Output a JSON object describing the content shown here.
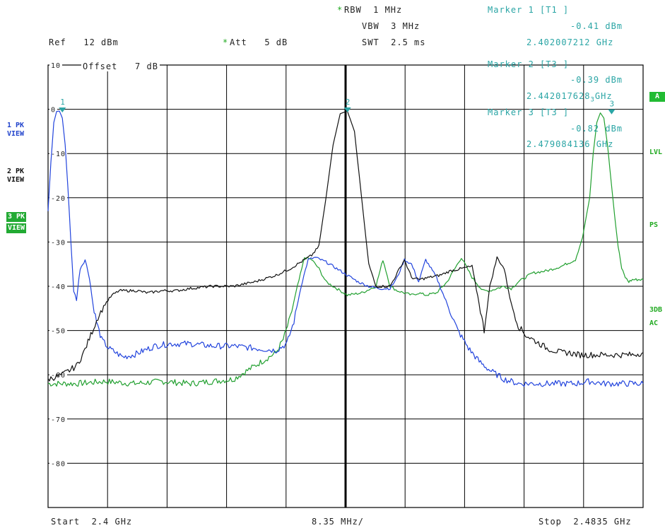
{
  "header": {
    "rbw": "RBW  1 MHz",
    "vbw": "VBW  3 MHz",
    "swt": "SWT  2.5 ms",
    "ref": "Ref   12 dBm",
    "att": "Att   5 dB",
    "offset": "Offset   7 dB",
    "star": "*"
  },
  "markers": [
    {
      "title": "Marker 1 [T1 ]",
      "level": "-0.41 dBm",
      "freq": "2.402007212 GHz"
    },
    {
      "title": "Marker 2 [T3 ]",
      "level": "-0.39 dBm",
      "freq": "2.442017628",
      "freq_sub": "3",
      "freq_unit": "GHz"
    },
    {
      "title": "Marker 3 [T3 ]",
      "level": "-0.82 dBm",
      "freq": "2.479084136 GHz"
    }
  ],
  "left_panel": {
    "trace1": [
      "1 PK",
      "VIEW"
    ],
    "trace2": [
      "2 PK",
      "VIEW"
    ],
    "trace3": [
      "3 PK",
      "VIEW"
    ]
  },
  "right_panel": {
    "a_box": "A",
    "lvl": "LVL",
    "ps": "PS",
    "three_db": "3DB",
    "ac": "AC"
  },
  "footer": {
    "start": "Start  2.4 GHz",
    "span": "8.35 MHz/",
    "stop": "Stop  2.4835 GHz"
  },
  "chart_data": {
    "type": "line",
    "x_unit": "GHz",
    "xlim": [
      2.4,
      2.4835
    ],
    "ylim": [
      -90,
      12
    ],
    "y_ticks": [
      10,
      0,
      -10,
      -20,
      -30,
      -40,
      -50,
      -60,
      -70,
      -80
    ],
    "y_tick_labels": [
      "10",
      "0",
      "-10",
      "-20",
      "-30",
      "-40",
      "-50",
      "-60",
      "-70",
      "-80"
    ],
    "grid": true,
    "colors": {
      "trace1": "#2244dd",
      "trace2": "#111111",
      "trace3": "#22a030",
      "marker": "#2aa5a5",
      "center_line": "#000000"
    },
    "series": [
      {
        "name": "1 PK VIEW",
        "x": [
          2.4,
          2.4004,
          2.4008,
          2.4012,
          2.4016,
          2.402,
          2.4024,
          2.4028,
          2.4032,
          2.4036,
          2.404,
          2.4045,
          2.4052,
          2.4058,
          2.4063,
          2.4068,
          2.4075,
          2.4085,
          2.4095,
          2.4105,
          2.412,
          2.4135,
          2.415,
          2.417,
          2.42,
          2.423,
          2.426,
          2.429,
          2.432,
          2.4335,
          2.4345,
          2.4355,
          2.4365,
          2.4375,
          2.439,
          2.4405,
          2.442,
          2.4435,
          2.445,
          2.4465,
          2.448,
          2.449,
          2.45,
          2.451,
          2.452,
          2.453,
          2.4545,
          2.456,
          2.4575,
          2.459,
          2.4605,
          2.462,
          2.464,
          2.466,
          2.468,
          2.47,
          2.472,
          2.474,
          2.476,
          2.478,
          2.48,
          2.482,
          2.4835
        ],
        "y": [
          -23,
          -12,
          -3,
          -0.5,
          -0.41,
          -2,
          -8,
          -18,
          -30,
          -41,
          -43,
          -36,
          -34,
          -38,
          -44,
          -48,
          -52,
          -54,
          -55,
          -56,
          -55.5,
          -54.5,
          -53.5,
          -53,
          -53,
          -53.5,
          -53.5,
          -54,
          -54.5,
          -53,
          -48,
          -40,
          -34,
          -33.5,
          -34.5,
          -36,
          -37.5,
          -39,
          -40,
          -40.5,
          -40.5,
          -38,
          -34,
          -35,
          -39,
          -34,
          -38,
          -44,
          -50,
          -54,
          -57,
          -59,
          -61,
          -62,
          -62,
          -62,
          -62,
          -62,
          -61.5,
          -62,
          -62,
          -62,
          -62
        ]
      },
      {
        "name": "2 PK VIEW",
        "x": [
          2.4,
          2.401,
          2.402,
          2.403,
          2.404,
          2.405,
          2.406,
          2.407,
          2.408,
          2.409,
          2.41,
          2.411,
          2.4125,
          2.414,
          2.416,
          2.418,
          2.42,
          2.423,
          2.426,
          2.429,
          2.432,
          2.434,
          2.436,
          2.437,
          2.438,
          2.439,
          2.44,
          2.441,
          2.442,
          2.443,
          2.444,
          2.445,
          2.446,
          2.447,
          2.448,
          2.449,
          2.45,
          2.451,
          2.452,
          2.4535,
          2.455,
          2.4565,
          2.458,
          2.4595,
          2.4605,
          2.4612,
          2.462,
          2.463,
          2.464,
          2.465,
          2.466,
          2.467,
          2.468,
          2.469,
          2.47,
          2.471,
          2.472,
          2.473,
          2.4745,
          2.476,
          2.478,
          2.48,
          2.482,
          2.4835
        ],
        "y": [
          -61,
          -60.5,
          -60,
          -59,
          -58,
          -55,
          -51,
          -47,
          -44,
          -42,
          -41,
          -41,
          -41,
          -41.5,
          -41,
          -41,
          -40.5,
          -40,
          -40,
          -39,
          -37.5,
          -36,
          -34,
          -33,
          -31,
          -20,
          -8,
          -1,
          -0.39,
          -5,
          -20,
          -35,
          -40,
          -40,
          -40,
          -37,
          -34,
          -38,
          -38.5,
          -38,
          -37.5,
          -36.5,
          -36,
          -35.5,
          -44,
          -50,
          -40,
          -33.5,
          -36,
          -44,
          -49,
          -51,
          -52,
          -53,
          -54,
          -54.5,
          -55,
          -55,
          -55.5,
          -55.5,
          -55.5,
          -55.5,
          -55.5,
          -55
        ]
      },
      {
        "name": "3 PK VIEW",
        "x": [
          2.4,
          2.404,
          2.408,
          2.412,
          2.416,
          2.42,
          2.423,
          2.426,
          2.428,
          2.43,
          2.432,
          2.433,
          2.434,
          2.435,
          2.436,
          2.437,
          2.438,
          2.439,
          2.44,
          2.441,
          2.442,
          2.444,
          2.446,
          2.447,
          2.448,
          2.449,
          2.45,
          2.451,
          2.452,
          2.453,
          2.4545,
          2.456,
          2.458,
          2.4595,
          2.461,
          2.462,
          2.463,
          2.464,
          2.465,
          2.466,
          2.467,
          2.468,
          2.47,
          2.472,
          2.474,
          2.475,
          2.476,
          2.4765,
          2.477,
          2.4775,
          2.478,
          2.4785,
          2.479,
          2.4795,
          2.48,
          2.4805,
          2.481,
          2.4815,
          2.482,
          2.4825,
          2.483,
          2.4835
        ],
        "y": [
          -62,
          -62,
          -61.5,
          -62,
          -61.5,
          -62,
          -61.5,
          -61,
          -59,
          -57,
          -55,
          -52,
          -47,
          -40,
          -33.5,
          -34,
          -36,
          -39,
          -40,
          -41,
          -42,
          -41.5,
          -40,
          -34,
          -40,
          -41,
          -41.5,
          -42,
          -41.5,
          -42,
          -41.5,
          -39,
          -33.5,
          -38,
          -41,
          -41,
          -40.5,
          -40,
          -40.5,
          -39,
          -38,
          -37,
          -36.5,
          -35.5,
          -34,
          -29,
          -20,
          -10,
          -3,
          -0.82,
          -2,
          -8,
          -16,
          -24,
          -31,
          -36,
          -38,
          -39,
          -38.5,
          -38.5,
          -38.5,
          -38.5
        ]
      }
    ],
    "marker_points": [
      {
        "label": "1",
        "x": 2.402007212,
        "y": -0.41
      },
      {
        "label": "2",
        "x": 2.4420176283,
        "y": -0.39
      },
      {
        "label": "3",
        "x": 2.479084136,
        "y": -0.82
      }
    ],
    "center_line_x": 2.44175
  }
}
